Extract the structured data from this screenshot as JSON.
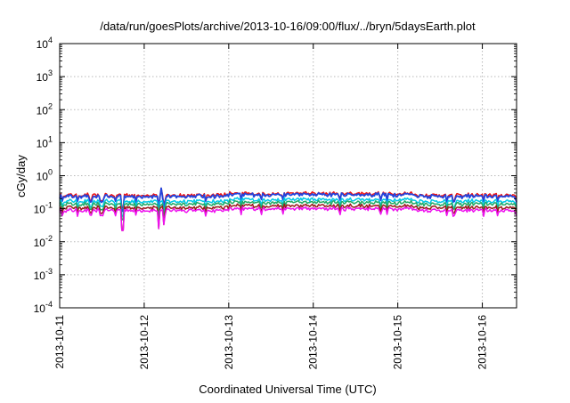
{
  "chart_data": {
    "type": "line",
    "title": "/data/run/goesPlots/archive/2013-10-16/09:00/flux/../bryn/5daysEarth.plot",
    "xlabel": "Coordinated Universal Time (UTC)",
    "ylabel": "cGy/day",
    "yscale": "log",
    "ylim": [
      0.0001,
      10000
    ],
    "xlim": [
      0,
      5.405
    ],
    "grid": true,
    "y_ticks": [
      {
        "exp": -4,
        "value": 0.0001
      },
      {
        "exp": -3,
        "value": 0.001
      },
      {
        "exp": -2,
        "value": 0.01
      },
      {
        "exp": -1,
        "value": 0.1
      },
      {
        "exp": 0,
        "value": 1
      },
      {
        "exp": 1,
        "value": 10
      },
      {
        "exp": 2,
        "value": 100
      },
      {
        "exp": 3,
        "value": 1000
      },
      {
        "exp": 4,
        "value": 10000
      }
    ],
    "y_tick_base": "10",
    "x_ticks": [
      {
        "label": "2013-10-11",
        "x": 0
      },
      {
        "label": "2013-10-12",
        "x": 1
      },
      {
        "label": "2013-10-13",
        "x": 2
      },
      {
        "label": "2013-10-14",
        "x": 3
      },
      {
        "label": "2013-10-15",
        "x": 4
      },
      {
        "label": "2013-10-16",
        "x": 5
      }
    ],
    "series": [
      {
        "color": "#ee1111",
        "base": 0.26
      },
      {
        "color": "#2244dd",
        "base": 0.24
      },
      {
        "color": "#00c8e6",
        "base": 0.17
      },
      {
        "color": "#22aa66",
        "base": 0.14
      },
      {
        "color": "#9a1a1a",
        "base": 0.11
      },
      {
        "color": "#ee11ee",
        "base": 0.09
      }
    ],
    "dips": [
      {
        "x": 0.74,
        "value": 0.022
      },
      {
        "x": 1.17,
        "value": 0.025
      },
      {
        "x": 1.23,
        "value": 0.033
      }
    ],
    "spikes": [
      {
        "x": 1.2,
        "value": 0.42
      }
    ]
  }
}
